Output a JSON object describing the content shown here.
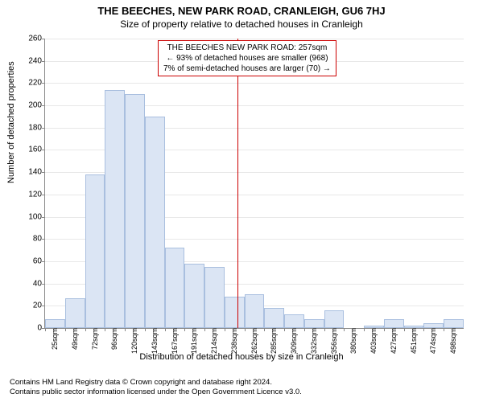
{
  "titles": {
    "main": "THE BEECHES, NEW PARK ROAD, CRANLEIGH, GU6 7HJ",
    "sub": "Size of property relative to detached houses in Cranleigh",
    "ylabel": "Number of detached properties",
    "xlabel": "Distribution of detached houses by size in Cranleigh"
  },
  "annotation": {
    "line1": "THE BEECHES NEW PARK ROAD: 257sqm",
    "line2": "← 93% of detached houses are smaller (968)",
    "line3": "7% of semi-detached houses are larger (70) →",
    "ref_x_value": 257
  },
  "footer": {
    "line1": "Contains HM Land Registry data © Crown copyright and database right 2024.",
    "line2": "Contains public sector information licensed under the Open Government Licence v3.0."
  },
  "chart": {
    "type": "histogram",
    "ylim": [
      0,
      260
    ],
    "ytick_step": 20,
    "x_bin_start": 25,
    "x_bin_width": 24,
    "x_tick_labels": [
      "25sqm",
      "49sqm",
      "72sqm",
      "96sqm",
      "120sqm",
      "143sqm",
      "167sqm",
      "191sqm",
      "214sqm",
      "238sqm",
      "262sqm",
      "285sqm",
      "309sqm",
      "332sqm",
      "356sqm",
      "380sqm",
      "403sqm",
      "427sqm",
      "451sqm",
      "474sqm",
      "498sqm"
    ],
    "values": [
      8,
      27,
      138,
      214,
      210,
      190,
      72,
      58,
      55,
      28,
      30,
      18,
      12,
      8,
      16,
      0,
      2,
      8,
      2,
      4,
      8
    ],
    "bar_fill": "#dbe5f4",
    "bar_stroke": "#a9bfdf",
    "background_color": "#ffffff",
    "grid_color": "#e8e8e8",
    "ref_line_color": "#cc0000",
    "annotation_border": "#cc0000",
    "axis_color": "#888888",
    "title_fontsize": 13,
    "subtitle_fontsize": 12,
    "label_fontsize": 11,
    "tick_fontsize": 10,
    "xtick_fontsize": 9
  }
}
